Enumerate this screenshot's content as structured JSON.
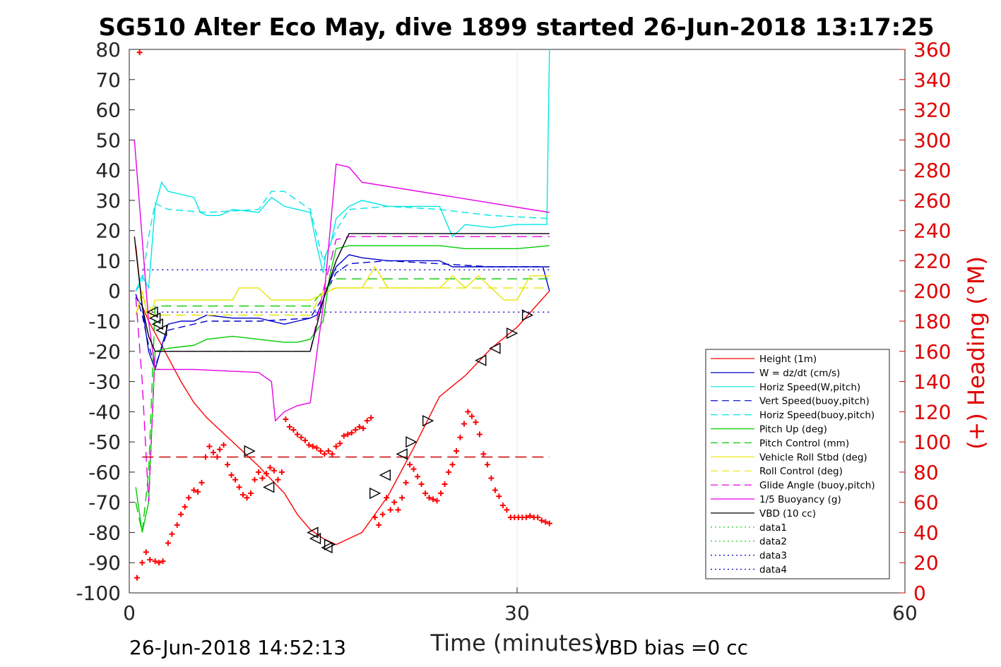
{
  "chart_data": {
    "type": "line",
    "title": "SG510 Alter Eco May, dive 1899 started 26-Jun-2018 13:17:25",
    "xlabel": "Time (minutes)",
    "ylabel_right": "(+) Heading (°M)",
    "footer_left": "26-Jun-2018 14:52:13",
    "footer_right": "VBD bias =0 cc",
    "xlim": [
      0,
      60
    ],
    "ylim": [
      -100,
      80
    ],
    "ylim_right": [
      0,
      360
    ],
    "xticks": [
      "0",
      "30",
      "60"
    ],
    "yticks": [
      "80",
      "70",
      "60",
      "50",
      "40",
      "30",
      "20",
      "10",
      "0",
      "-10",
      "-20",
      "-30",
      "-40",
      "-50",
      "-60",
      "-70",
      "-80",
      "-90",
      "-100"
    ],
    "yticks_right": [
      "360",
      "340",
      "320",
      "300",
      "280",
      "260",
      "240",
      "220",
      "200",
      "180",
      "160",
      "140",
      "120",
      "100",
      "80",
      "60",
      "40",
      "20",
      "0"
    ],
    "grid": "x-only",
    "legend_position": "lower-right",
    "colors": {
      "red": "#ff0000",
      "blue": "#0000cc",
      "cyan": "#00e6e6",
      "green": "#00cc00",
      "yellow": "#e6e600",
      "magenta": "#e600e6",
      "black": "#000000",
      "heading": "#ff0000"
    },
    "legend": [
      {
        "label": "Height (1m)",
        "color": "#ff0000",
        "style": "solid"
      },
      {
        "label": "W = dz/dt (cm/s)",
        "color": "#0000cc",
        "style": "solid"
      },
      {
        "label": "Horiz Speed(W,pitch)",
        "color": "#00e6e6",
        "style": "solid"
      },
      {
        "label": "Vert Speed(buoy,pitch)",
        "color": "#0000cc",
        "style": "dashed"
      },
      {
        "label": "Horiz Speed(buoy,pitch)",
        "color": "#00e6e6",
        "style": "dashed"
      },
      {
        "label": "Pitch Up (deg)",
        "color": "#00cc00",
        "style": "solid"
      },
      {
        "label": "Pitch Control (mm)",
        "color": "#00cc00",
        "style": "dashed"
      },
      {
        "label": "Vehicle Roll Stbd (deg)",
        "color": "#e6e600",
        "style": "solid"
      },
      {
        "label": "Roll Control (deg)",
        "color": "#e6e600",
        "style": "dashed"
      },
      {
        "label": "Glide Angle (buoy,pitch)",
        "color": "#e600e6",
        "style": "dashed"
      },
      {
        "label": "1/5 Buoyancy (g)",
        "color": "#e600e6",
        "style": "solid"
      },
      {
        "label": "VBD (10 cc)",
        "color": "#000000",
        "style": "solid"
      },
      {
        "label": "data1",
        "color": "#00cc00",
        "style": "dotted"
      },
      {
        "label": "data2",
        "color": "#00cc00",
        "style": "dotted"
      },
      {
        "label": "data3",
        "color": "#0000cc",
        "style": "dotted"
      },
      {
        "label": "data4",
        "color": "#0000cc",
        "style": "dotted"
      }
    ],
    "series": [
      {
        "name": "Height (1m)",
        "color": "#ff0000",
        "dash": "",
        "axis": "left",
        "x": [
          0.5,
          1,
          1.5,
          2,
          3,
          4,
          5,
          6,
          8,
          10,
          12,
          13,
          14,
          15,
          16,
          18,
          20,
          22,
          24,
          26,
          28,
          30,
          32.5
        ],
        "y": [
          15,
          -5,
          -10,
          -14,
          -22,
          -30,
          -37,
          -42,
          -50,
          -58,
          -67,
          -74,
          -79,
          -82,
          -84,
          -80,
          -68,
          -52,
          -35,
          -28,
          -19,
          -12,
          0
        ]
      },
      {
        "name": "W = dz/dt (cm/s)",
        "color": "#0000cc",
        "dash": "",
        "axis": "left",
        "x": [
          0.5,
          1,
          1.5,
          2,
          3,
          4,
          5,
          6,
          8,
          10,
          11,
          12,
          13,
          14,
          14.5,
          15,
          15.5,
          16,
          17,
          18,
          20,
          22,
          24,
          25,
          26,
          28,
          30,
          32,
          32.5
        ],
        "y": [
          -2,
          -5,
          -20,
          -26,
          -11,
          -10,
          -10,
          -8,
          -9,
          -9,
          -10,
          -11,
          -10,
          -9,
          -8,
          -3,
          3,
          8,
          12,
          11,
          10,
          10,
          10,
          8,
          8,
          8,
          8,
          8,
          0
        ]
      },
      {
        "name": "Horiz Speed(W,pitch)",
        "color": "#00e6e6",
        "dash": "",
        "axis": "left",
        "x": [
          0.5,
          1,
          1.5,
          2,
          2.5,
          3,
          5,
          5.5,
          6,
          7,
          8,
          10,
          11,
          12,
          13,
          14,
          14.5,
          15,
          15.2,
          15.6,
          16,
          17,
          18,
          20,
          22,
          24,
          25,
          26,
          28,
          30,
          32,
          32.3,
          32.5
        ],
        "y": [
          0,
          5,
          1,
          28,
          36,
          33,
          31,
          26,
          25,
          25,
          27,
          26,
          31,
          28,
          27,
          26,
          15,
          6,
          12,
          16,
          24,
          28,
          30,
          28,
          28,
          28,
          18,
          22,
          21,
          22,
          22,
          22,
          80
        ]
      },
      {
        "name": "Vert Speed(buoy,pitch)",
        "color": "#0000cc",
        "dash": "10,6",
        "axis": "left",
        "x": [
          0.5,
          1,
          1.5,
          2,
          3,
          6,
          10,
          14,
          15,
          16,
          17,
          20,
          24,
          28,
          32.5
        ],
        "y": [
          -1,
          -8,
          -18,
          -25,
          -13,
          -10,
          -10,
          -9,
          -2,
          6,
          9,
          10,
          9,
          8,
          8
        ]
      },
      {
        "name": "Horiz Speed(buoy,pitch)",
        "color": "#00e6e6",
        "dash": "10,6",
        "axis": "left",
        "x": [
          0.5,
          1,
          1.5,
          2,
          3,
          6,
          10,
          11,
          12,
          14,
          15,
          16,
          17,
          20,
          24,
          28,
          32.5
        ],
        "y": [
          0,
          3,
          18,
          29,
          27,
          26,
          27,
          33,
          33,
          27,
          10,
          20,
          27,
          28,
          27,
          25,
          24
        ]
      },
      {
        "name": "Pitch Up (deg)",
        "color": "#00cc00",
        "dash": "",
        "axis": "left",
        "x": [
          0.5,
          1,
          1.5,
          2,
          3,
          5,
          6,
          8,
          10,
          12,
          13,
          14,
          15,
          15.5,
          16,
          17,
          20,
          24,
          26,
          28,
          30,
          32.5
        ],
        "y": [
          -65,
          -80,
          -70,
          -20,
          -19,
          -18,
          -16,
          -15,
          -16,
          -17,
          -17,
          -16,
          -10,
          5,
          14,
          15,
          15,
          15,
          14,
          14,
          14,
          15
        ]
      },
      {
        "name": "Pitch Control (mm)",
        "color": "#00cc00",
        "dash": "14,8",
        "axis": "left",
        "x": [
          0.5,
          1,
          1.5,
          2,
          3,
          14,
          15,
          16,
          17,
          32.5
        ],
        "y": [
          -70,
          -80,
          -60,
          -5,
          -5,
          -5,
          0,
          4,
          4,
          4
        ]
      },
      {
        "name": "Vehicle Roll Stbd (deg)",
        "color": "#e6e600",
        "dash": "",
        "axis": "left",
        "x": [
          0.5,
          1,
          1.5,
          2,
          3,
          5,
          8,
          8.5,
          10,
          11,
          12,
          14,
          15,
          16,
          18,
          19,
          20,
          22,
          24,
          25,
          26,
          27,
          28,
          29,
          30,
          31,
          32,
          32.5
        ],
        "y": [
          -8,
          0,
          -10,
          -3,
          -3,
          -3,
          -3,
          1,
          1,
          -3,
          -3,
          -3,
          -1,
          1,
          1,
          8,
          1,
          1,
          1,
          5,
          1,
          5,
          1,
          -3,
          -3,
          5,
          5,
          5
        ]
      },
      {
        "name": "Roll Control (deg)",
        "color": "#e6e600",
        "dash": "14,8",
        "axis": "left",
        "x": [
          0.5,
          1,
          2,
          14,
          15,
          16,
          32.5
        ],
        "y": [
          -8,
          -2,
          -8,
          -8,
          0,
          1,
          1
        ]
      },
      {
        "name": "Glide Angle (buoy,pitch)",
        "color": "#e600e6",
        "dash": "14,8",
        "axis": "left",
        "x": [
          0.5,
          1,
          1.5,
          2,
          3,
          14,
          15,
          16,
          17,
          32.5
        ],
        "y": [
          -2,
          -30,
          -70,
          -20,
          -20,
          -20,
          0,
          17,
          18,
          18
        ]
      },
      {
        "name": "1/5 Buoyancy (g)",
        "color": "#e600e6",
        "dash": "",
        "axis": "left",
        "x": [
          0.4,
          1.5,
          2,
          5,
          10,
          11,
          11.3,
          12,
          13,
          14,
          15,
          16,
          17,
          18,
          32.5
        ],
        "y": [
          50,
          -10,
          -26,
          -26,
          -27,
          -30,
          -43,
          -40,
          -38,
          -37,
          -5,
          42,
          41,
          36,
          26
        ]
      },
      {
        "name": "VBD (10 cc)",
        "color": "#000000",
        "dash": "",
        "axis": "left",
        "x": [
          0.4,
          1,
          1.5,
          2,
          14,
          15,
          16,
          17,
          32.5
        ],
        "y": [
          18,
          -5,
          -15,
          -20,
          -20,
          -3,
          10,
          19,
          19
        ]
      },
      {
        "name": "data3",
        "color": "#0000cc",
        "dash": "2,5",
        "axis": "left",
        "x": [
          1,
          32.5
        ],
        "y": [
          7,
          7
        ]
      },
      {
        "name": "data4",
        "color": "#0000cc",
        "dash": "2,5",
        "axis": "left",
        "x": [
          1,
          32.5
        ],
        "y": [
          -7,
          -7
        ]
      },
      {
        "name": "",
        "color": "#cc0000",
        "dash": "16,8",
        "axis": "left",
        "x": [
          1,
          32.5
        ],
        "y": [
          -55,
          -55
        ]
      }
    ],
    "heading_markers": {
      "color": "#ff0000",
      "axis": "right",
      "x": [
        0.6,
        0.8,
        1,
        1.3,
        1.6,
        2,
        2.3,
        2.6,
        3,
        3.3,
        3.7,
        4,
        4.3,
        4.6,
        5,
        5.3,
        5.6,
        5.9,
        6.2,
        6.5,
        6.8,
        7,
        7.3,
        7.6,
        7.9,
        8.2,
        8.5,
        8.8,
        9.1,
        9.4,
        9.7,
        10,
        10.3,
        10.6,
        10.9,
        11.2,
        11.5,
        11.8,
        12.1,
        12.4,
        12.7,
        13,
        13.3,
        13.6,
        13.9,
        14.2,
        14.5,
        14.8,
        15.1,
        15.4,
        15.7,
        16,
        16.3,
        16.6,
        16.9,
        17.2,
        17.5,
        17.8,
        18.1,
        18.4,
        18.7,
        19,
        19.3,
        19.6,
        19.9,
        20.2,
        20.5,
        20.8,
        21.1,
        21.4,
        21.7,
        22,
        22.3,
        22.6,
        22.9,
        23.2,
        23.5,
        23.8,
        24.1,
        24.4,
        24.7,
        25,
        25.3,
        25.6,
        25.9,
        26.2,
        26.5,
        26.8,
        27.1,
        27.4,
        27.7,
        28,
        28.3,
        28.6,
        28.9,
        29.2,
        29.5,
        29.8,
        30.1,
        30.4,
        30.7,
        31,
        31.3,
        31.6,
        31.9,
        32.2,
        32.5
      ],
      "y": [
        10,
        358,
        20,
        27,
        22,
        21,
        20,
        21,
        33,
        39,
        45,
        52,
        57,
        63,
        68,
        67,
        73,
        90,
        97,
        93,
        90,
        95,
        98,
        85,
        78,
        75,
        70,
        65,
        63,
        66,
        75,
        80,
        76,
        79,
        83,
        81,
        75,
        80,
        115,
        110,
        108,
        105,
        103,
        101,
        98,
        97,
        96,
        94,
        92,
        94,
        92,
        97,
        99,
        104,
        105,
        106,
        108,
        110,
        109,
        114,
        116,
        50,
        45,
        52,
        63,
        55,
        60,
        55,
        63,
        73,
        85,
        82,
        77,
        72,
        66,
        63,
        62,
        61,
        66,
        72,
        80,
        85,
        94,
        103,
        112,
        120,
        117,
        113,
        105,
        92,
        85,
        76,
        68,
        64,
        58,
        55,
        50,
        50,
        50,
        50,
        50,
        51,
        50,
        50,
        48,
        47,
        46
      ]
    },
    "triangle_markers": [
      {
        "x": 1.8,
        "y": -7,
        "dir": "left"
      },
      {
        "x": 2.0,
        "y": -9,
        "dir": "left"
      },
      {
        "x": 2.2,
        "y": -11,
        "dir": "left"
      },
      {
        "x": 2.5,
        "y": -13,
        "dir": "left"
      },
      {
        "x": 9.3,
        "y": -53,
        "dir": "right"
      },
      {
        "x": 10.8,
        "y": -65,
        "dir": "left"
      },
      {
        "x": 14.2,
        "y": -80,
        "dir": "left"
      },
      {
        "x": 14.4,
        "y": -82,
        "dir": "left"
      },
      {
        "x": 15.3,
        "y": -85,
        "dir": "left"
      },
      {
        "x": 15.5,
        "y": -84,
        "dir": "right"
      },
      {
        "x": 19,
        "y": -67,
        "dir": "right"
      },
      {
        "x": 19.8,
        "y": -61,
        "dir": "left"
      },
      {
        "x": 21.1,
        "y": -54,
        "dir": "left"
      },
      {
        "x": 21.8,
        "y": -50,
        "dir": "right"
      },
      {
        "x": 23.1,
        "y": -43,
        "dir": "right"
      },
      {
        "x": 27.2,
        "y": -23,
        "dir": "left"
      },
      {
        "x": 28.3,
        "y": -19,
        "dir": "left"
      },
      {
        "x": 29.6,
        "y": -14,
        "dir": "right"
      },
      {
        "x": 30.8,
        "y": -8,
        "dir": "right"
      }
    ]
  }
}
